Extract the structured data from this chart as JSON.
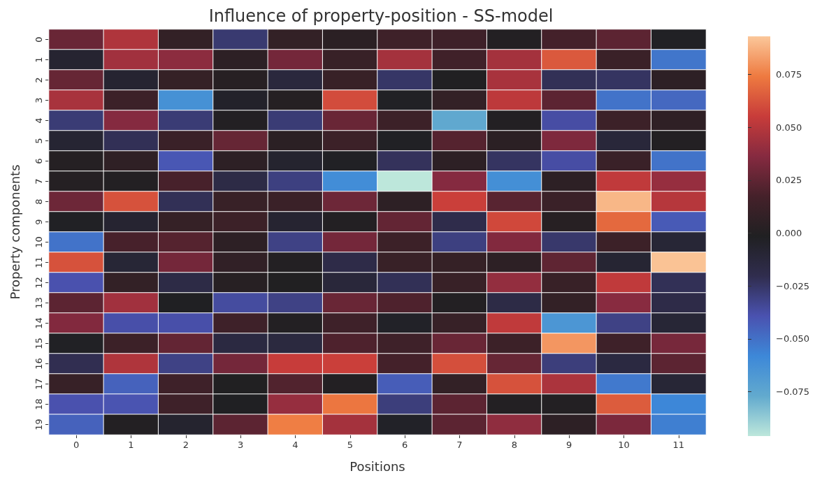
{
  "chart_data": {
    "type": "heatmap",
    "title": "Influence of property-position - SS-model",
    "xlabel": "Positions",
    "ylabel": "Property components",
    "categories": [
      "0",
      "1",
      "2",
      "3",
      "4",
      "5",
      "6",
      "7",
      "8",
      "9",
      "10",
      "11"
    ],
    "y_categories": [
      "0",
      "1",
      "2",
      "3",
      "4",
      "5",
      "6",
      "7",
      "8",
      "9",
      "10",
      "11",
      "12",
      "13",
      "14",
      "15",
      "16",
      "17",
      "18",
      "19"
    ],
    "cells": [
      [
        0.028,
        0.048,
        0.008,
        -0.027,
        0.008,
        0.004,
        0.014,
        0.014,
        0.0,
        0.017,
        0.024,
        -0.003
      ],
      [
        -0.008,
        0.044,
        0.038,
        0.005,
        0.031,
        0.011,
        0.045,
        0.015,
        0.045,
        0.064,
        0.012,
        -0.052
      ],
      [
        0.027,
        -0.008,
        0.009,
        0.002,
        -0.013,
        0.011,
        -0.025,
        -0.001,
        0.046,
        -0.022,
        -0.024,
        0.005
      ],
      [
        0.046,
        0.013,
        -0.063,
        -0.005,
        0.001,
        0.06,
        -0.003,
        0.008,
        0.052,
        0.024,
        -0.051,
        -0.047
      ],
      [
        -0.028,
        0.036,
        -0.028,
        0.0,
        -0.028,
        0.028,
        0.013,
        -0.076,
        0.0,
        -0.037,
        0.013,
        0.006
      ],
      [
        -0.009,
        -0.022,
        0.012,
        0.027,
        0.004,
        0.013,
        -0.003,
        0.022,
        0.004,
        0.034,
        -0.012,
        0.0
      ],
      [
        0.001,
        0.006,
        -0.041,
        0.005,
        -0.007,
        -0.003,
        -0.023,
        0.005,
        -0.024,
        -0.037,
        0.012,
        -0.051
      ],
      [
        0.001,
        0.0,
        0.018,
        -0.017,
        -0.03,
        -0.061,
        -0.096,
        0.036,
        -0.062,
        0.005,
        0.053,
        0.041
      ],
      [
        0.029,
        0.062,
        -0.022,
        0.011,
        0.012,
        0.029,
        0.005,
        0.056,
        0.023,
        0.012,
        0.089,
        0.05
      ],
      [
        -0.003,
        -0.008,
        0.009,
        0.013,
        -0.008,
        0.0,
        0.026,
        -0.019,
        0.059,
        0.002,
        0.069,
        -0.042
      ],
      [
        -0.051,
        0.018,
        0.022,
        0.005,
        -0.031,
        0.031,
        0.013,
        -0.03,
        0.035,
        -0.026,
        0.013,
        -0.01
      ],
      [
        0.062,
        -0.01,
        0.031,
        0.007,
        0.0,
        -0.018,
        0.011,
        0.009,
        0.005,
        0.025,
        -0.009,
        0.092
      ],
      [
        -0.039,
        0.008,
        -0.017,
        0.002,
        -0.001,
        -0.012,
        -0.022,
        0.011,
        0.04,
        0.011,
        0.053,
        -0.022
      ],
      [
        0.024,
        0.044,
        -0.002,
        -0.036,
        -0.031,
        0.028,
        0.02,
        0.0,
        -0.017,
        0.008,
        0.037,
        -0.018
      ],
      [
        0.035,
        -0.038,
        -0.038,
        0.014,
        0.0,
        0.014,
        -0.004,
        0.01,
        0.053,
        -0.066,
        -0.031,
        -0.01
      ],
      [
        -0.003,
        0.013,
        0.026,
        -0.015,
        -0.014,
        0.02,
        0.014,
        0.028,
        0.013,
        0.081,
        0.014,
        0.032
      ],
      [
        -0.021,
        0.048,
        -0.031,
        0.031,
        0.055,
        0.056,
        0.017,
        0.061,
        0.027,
        -0.029,
        -0.015,
        0.024
      ],
      [
        0.01,
        -0.045,
        0.014,
        -0.001,
        0.021,
        0.0,
        -0.043,
        0.008,
        0.062,
        0.047,
        -0.053,
        -0.01
      ],
      [
        -0.039,
        -0.04,
        0.014,
        -0.002,
        0.041,
        0.073,
        -0.029,
        0.024,
        0.0,
        0.0,
        0.065,
        -0.058
      ],
      [
        -0.045,
        0.0,
        -0.007,
        0.024,
        0.075,
        0.045,
        -0.004,
        0.024,
        0.039,
        0.005,
        0.033,
        -0.055
      ]
    ],
    "clim": [
      -0.096,
      0.093
    ],
    "cticks": [
      {
        "value": -0.075,
        "label": "−0.075"
      },
      {
        "value": -0.05,
        "label": "−0.050"
      },
      {
        "value": -0.025,
        "label": "−0.025"
      },
      {
        "value": 0,
        "label": "0.000"
      },
      {
        "value": 0.025,
        "label": "0.025"
      },
      {
        "value": 0.05,
        "label": "0.050"
      },
      {
        "value": 0.075,
        "label": "0.075"
      }
    ]
  }
}
